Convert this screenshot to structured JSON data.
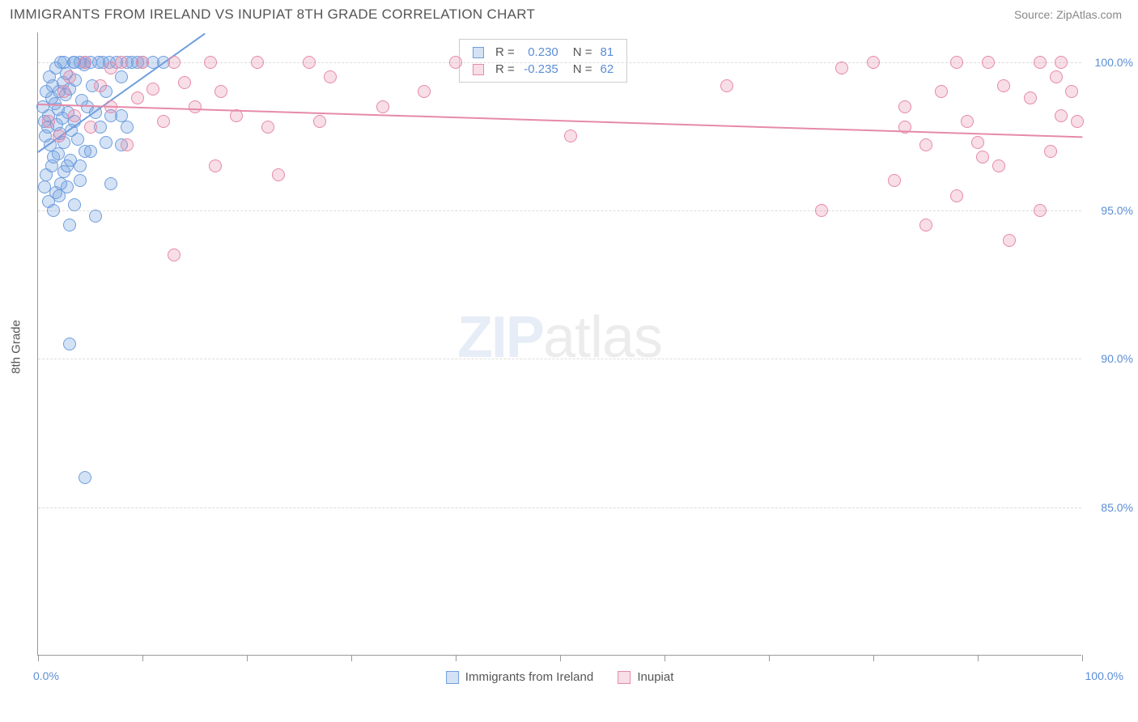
{
  "header": {
    "title": "IMMIGRANTS FROM IRELAND VS INUPIAT 8TH GRADE CORRELATION CHART",
    "source": "Source: ZipAtlas.com"
  },
  "axis": {
    "y_title": "8th Grade",
    "x_min_label": "0.0%",
    "x_max_label": "100.0%",
    "y_labels": [
      {
        "v": 85.0,
        "t": "85.0%"
      },
      {
        "v": 90.0,
        "t": "90.0%"
      },
      {
        "v": 95.0,
        "t": "95.0%"
      },
      {
        "v": 100.0,
        "t": "100.0%"
      }
    ],
    "xlim": [
      0,
      100
    ],
    "ylim": [
      80,
      101
    ],
    "x_ticks": [
      0,
      10,
      20,
      30,
      40,
      50,
      60,
      70,
      80,
      90,
      100
    ]
  },
  "watermark": {
    "a": "ZIP",
    "b": "atlas"
  },
  "series": [
    {
      "name": "Immigrants from Ireland",
      "color": "#6f9ede",
      "fill": "rgba(111,158,222,0.30)",
      "r": "0.230",
      "n": "81",
      "trend": {
        "x1": 0,
        "y1": 97.0,
        "x2": 16,
        "y2": 101.0
      },
      "points": [
        [
          0.5,
          98.5
        ],
        [
          0.6,
          98.0
        ],
        [
          0.7,
          97.5
        ],
        [
          0.8,
          99.0
        ],
        [
          0.9,
          97.8
        ],
        [
          1.0,
          98.2
        ],
        [
          1.1,
          99.5
        ],
        [
          1.2,
          97.2
        ],
        [
          1.3,
          98.8
        ],
        [
          1.4,
          99.2
        ],
        [
          1.5,
          96.8
        ],
        [
          1.6,
          98.6
        ],
        [
          1.7,
          99.8
        ],
        [
          1.8,
          97.9
        ],
        [
          1.9,
          98.4
        ],
        [
          2.0,
          99.0
        ],
        [
          2.1,
          97.6
        ],
        [
          2.2,
          100.0
        ],
        [
          2.3,
          98.1
        ],
        [
          2.4,
          99.3
        ],
        [
          2.5,
          97.3
        ],
        [
          2.6,
          98.9
        ],
        [
          2.7,
          99.6
        ],
        [
          2.8,
          96.5
        ],
        [
          2.9,
          98.3
        ],
        [
          3.0,
          99.1
        ],
        [
          3.2,
          97.7
        ],
        [
          3.4,
          100.0
        ],
        [
          3.5,
          98.0
        ],
        [
          3.6,
          99.4
        ],
        [
          3.8,
          97.4
        ],
        [
          4.0,
          100.0
        ],
        [
          4.2,
          98.7
        ],
        [
          4.4,
          99.9
        ],
        [
          4.5,
          97.0
        ],
        [
          4.7,
          98.5
        ],
        [
          5.0,
          100.0
        ],
        [
          5.2,
          99.2
        ],
        [
          5.5,
          98.3
        ],
        [
          5.8,
          100.0
        ],
        [
          6.0,
          97.8
        ],
        [
          6.2,
          100.0
        ],
        [
          6.5,
          99.0
        ],
        [
          6.8,
          100.0
        ],
        [
          7.0,
          98.2
        ],
        [
          7.5,
          100.0
        ],
        [
          8.0,
          99.5
        ],
        [
          8.5,
          100.0
        ],
        [
          9.0,
          100.0
        ],
        [
          10.0,
          100.0
        ],
        [
          11.0,
          100.0
        ],
        [
          12.0,
          100.0
        ],
        [
          1.5,
          95.0
        ],
        [
          2.0,
          95.5
        ],
        [
          2.8,
          95.8
        ],
        [
          3.5,
          95.2
        ],
        [
          4.0,
          96.0
        ],
        [
          3.0,
          94.5
        ],
        [
          5.5,
          94.8
        ],
        [
          7.0,
          95.9
        ],
        [
          0.8,
          96.2
        ],
        [
          1.3,
          96.5
        ],
        [
          1.9,
          96.9
        ],
        [
          2.5,
          96.3
        ],
        [
          3.1,
          96.7
        ],
        [
          0.6,
          95.8
        ],
        [
          1.0,
          95.3
        ],
        [
          1.7,
          95.6
        ],
        [
          2.2,
          95.9
        ],
        [
          4.0,
          96.5
        ],
        [
          5.0,
          97.0
        ],
        [
          6.5,
          97.3
        ],
        [
          8.0,
          97.2
        ],
        [
          8.0,
          98.2
        ],
        [
          8.5,
          97.8
        ],
        [
          3.0,
          90.5
        ],
        [
          4.5,
          86.0
        ],
        [
          2.5,
          100.0
        ],
        [
          3.5,
          100.0
        ],
        [
          4.5,
          100.0
        ],
        [
          9.5,
          100.0
        ]
      ]
    },
    {
      "name": "Inupiat",
      "color": "#e68aa8",
      "fill": "rgba(230,138,168,0.28)",
      "r": "-0.235",
      "n": "62",
      "trend": {
        "x1": 0,
        "y1": 98.6,
        "x2": 100,
        "y2": 97.5
      },
      "points": [
        [
          1.0,
          98.0
        ],
        [
          2.0,
          97.5
        ],
        [
          2.5,
          99.0
        ],
        [
          3.0,
          99.5
        ],
        [
          3.5,
          98.2
        ],
        [
          4.5,
          100.0
        ],
        [
          5.0,
          97.8
        ],
        [
          6.0,
          99.2
        ],
        [
          7.0,
          98.5
        ],
        [
          8.0,
          100.0
        ],
        [
          8.5,
          97.2
        ],
        [
          9.5,
          98.8
        ],
        [
          10.0,
          100.0
        ],
        [
          11.0,
          99.1
        ],
        [
          12.0,
          98.0
        ],
        [
          13.0,
          100.0
        ],
        [
          14.0,
          99.3
        ],
        [
          15.0,
          98.5
        ],
        [
          16.5,
          100.0
        ],
        [
          17.0,
          96.5
        ],
        [
          17.5,
          99.0
        ],
        [
          19.0,
          98.2
        ],
        [
          21.0,
          100.0
        ],
        [
          22.0,
          97.8
        ],
        [
          23.0,
          96.2
        ],
        [
          26.0,
          100.0
        ],
        [
          27.0,
          98.0
        ],
        [
          28.0,
          99.5
        ],
        [
          33.0,
          98.5
        ],
        [
          37.0,
          99.0
        ],
        [
          40.0,
          100.0
        ],
        [
          51.0,
          97.5
        ],
        [
          66.0,
          99.2
        ],
        [
          75.0,
          95.0
        ],
        [
          77.0,
          99.8
        ],
        [
          80.0,
          100.0
        ],
        [
          82.0,
          96.0
        ],
        [
          83.0,
          97.8
        ],
        [
          83.0,
          98.5
        ],
        [
          85.0,
          97.2
        ],
        [
          85.0,
          94.5
        ],
        [
          86.5,
          99.0
        ],
        [
          88.0,
          95.5
        ],
        [
          88.0,
          100.0
        ],
        [
          89.0,
          98.0
        ],
        [
          90.0,
          97.3
        ],
        [
          90.5,
          96.8
        ],
        [
          91.0,
          100.0
        ],
        [
          92.0,
          96.5
        ],
        [
          92.5,
          99.2
        ],
        [
          93.0,
          94.0
        ],
        [
          95.0,
          98.8
        ],
        [
          96.0,
          95.0
        ],
        [
          96.0,
          100.0
        ],
        [
          97.0,
          97.0
        ],
        [
          97.5,
          99.5
        ],
        [
          98.0,
          98.2
        ],
        [
          98.0,
          100.0
        ],
        [
          99.0,
          99.0
        ],
        [
          99.5,
          98.0
        ],
        [
          13.0,
          93.5
        ],
        [
          7.0,
          99.8
        ]
      ]
    }
  ],
  "legend_footer": {
    "a": "Immigrants from Ireland",
    "b": "Inupiat"
  },
  "style": {
    "background": "#ffffff",
    "grid_color": "#dddddd",
    "axis_color": "#999999",
    "label_color": "#5b8dd6",
    "text_color": "#555555",
    "point_radius": 8,
    "title_fontsize": 17,
    "label_fontsize": 14
  }
}
